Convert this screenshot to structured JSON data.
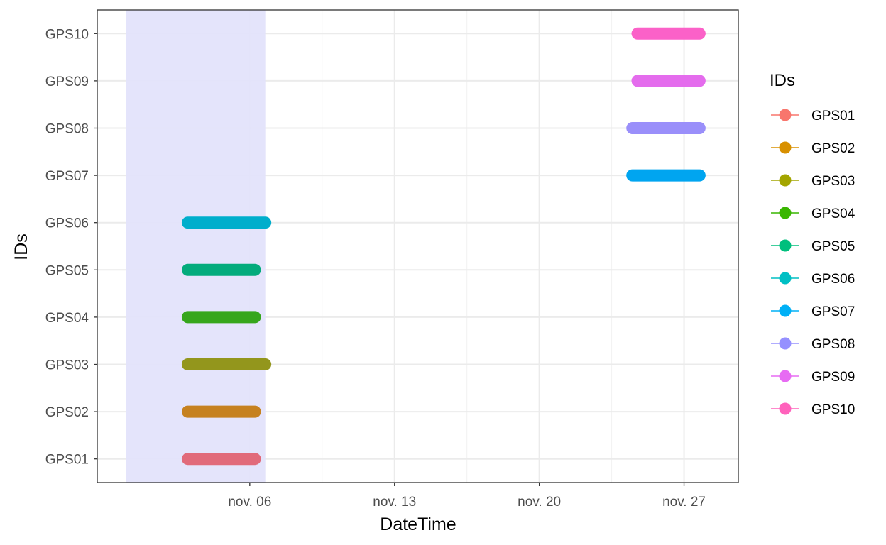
{
  "chart_data": {
    "type": "line",
    "xlabel": "DateTime",
    "ylabel": "IDs",
    "x_axis_type": "date",
    "xlim": [
      "2023-10-29T15:00",
      "2023-11-29T15:00"
    ],
    "x_ticks": [
      {
        "date": "2023-11-06",
        "label": "nov. 06"
      },
      {
        "date": "2023-11-13",
        "label": "nov. 13"
      },
      {
        "date": "2023-11-20",
        "label": "nov. 20"
      },
      {
        "date": "2023-11-27",
        "label": "nov. 27"
      }
    ],
    "x_minor_ticks": [
      "2023-11-02T12:00",
      "2023-11-09T12:00",
      "2023-11-16T12:00",
      "2023-11-23T12:00"
    ],
    "categories": [
      "GPS01",
      "GPS02",
      "GPS03",
      "GPS04",
      "GPS05",
      "GPS06",
      "GPS07",
      "GPS08",
      "GPS09",
      "GPS10"
    ],
    "highlight_band": {
      "start": "2023-10-31T00:00",
      "end": "2023-11-06T18:00",
      "color": "#e3e3fb"
    },
    "series": [
      {
        "name": "GPS01",
        "color": "#e16a7a",
        "start": "2023-11-03T00:00",
        "end": "2023-11-06T06:00"
      },
      {
        "name": "GPS02",
        "color": "#c6811f",
        "start": "2023-11-03T00:00",
        "end": "2023-11-06T06:00"
      },
      {
        "name": "GPS03",
        "color": "#93961c",
        "start": "2023-11-03T00:00",
        "end": "2023-11-06T18:00"
      },
      {
        "name": "GPS04",
        "color": "#36a61c",
        "start": "2023-11-03T00:00",
        "end": "2023-11-06T06:00"
      },
      {
        "name": "GPS05",
        "color": "#03ab7c",
        "start": "2023-11-03T00:00",
        "end": "2023-11-06T06:00"
      },
      {
        "name": "GPS06",
        "color": "#00aecc",
        "start": "2023-11-03T00:00",
        "end": "2023-11-06T18:00"
      },
      {
        "name": "GPS07",
        "color": "#00a5f0",
        "start": "2023-11-24T12:00",
        "end": "2023-11-27T18:00"
      },
      {
        "name": "GPS08",
        "color": "#9a8ffa",
        "start": "2023-11-24T12:00",
        "end": "2023-11-27T18:00"
      },
      {
        "name": "GPS09",
        "color": "#e46ced",
        "start": "2023-11-24T18:00",
        "end": "2023-11-27T18:00"
      },
      {
        "name": "GPS10",
        "color": "#fb61c8",
        "start": "2023-11-24T18:00",
        "end": "2023-11-27T18:00"
      }
    ],
    "legend": {
      "title": "IDs",
      "position": "right",
      "entries": [
        {
          "label": "GPS01",
          "color": "#f8766d"
        },
        {
          "label": "GPS02",
          "color": "#d89000"
        },
        {
          "label": "GPS03",
          "color": "#a3a500"
        },
        {
          "label": "GPS04",
          "color": "#39b600"
        },
        {
          "label": "GPS05",
          "color": "#00bf7d"
        },
        {
          "label": "GPS06",
          "color": "#00bfc4"
        },
        {
          "label": "GPS07",
          "color": "#00b0f6"
        },
        {
          "label": "GPS08",
          "color": "#9590ff"
        },
        {
          "label": "GPS09",
          "color": "#e76bf3"
        },
        {
          "label": "GPS10",
          "color": "#ff62bc"
        }
      ]
    },
    "grid": true
  }
}
